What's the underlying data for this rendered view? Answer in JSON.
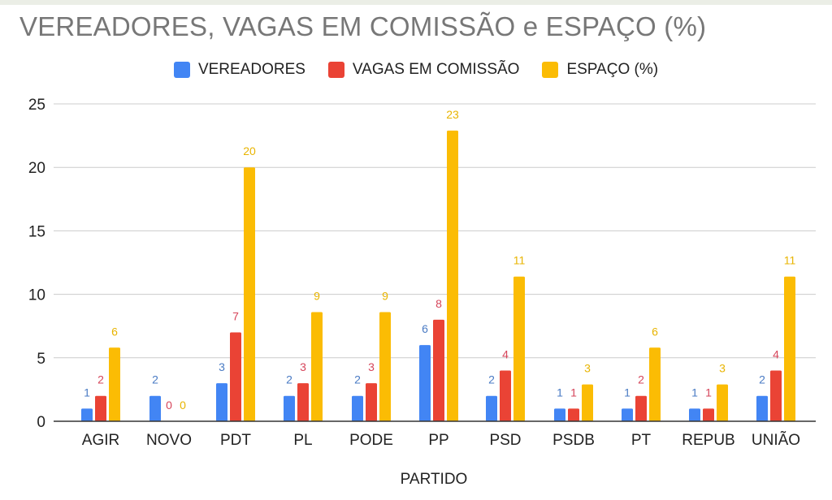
{
  "colors": {
    "background": "#ffffff",
    "title": "#777777",
    "gridline": "#cccccc",
    "axis": "#333333",
    "tick_label": "#222222"
  },
  "chart_data": {
    "type": "bar",
    "title": "VEREADORES, VAGAS EM COMISSÃO e ESPAÇO (%)",
    "xlabel": "PARTIDO",
    "ylabel": "",
    "categories": [
      "AGIR",
      "NOVO",
      "PDT",
      "PL",
      "PODE",
      "PP",
      "PSD",
      "PSDB",
      "PT",
      "REPUB",
      "UNIÃO"
    ],
    "series": [
      {
        "name": "VEREADORES",
        "color": "#4285f4",
        "label_color": "#4a7bc4",
        "values": [
          1,
          2,
          3,
          2,
          2,
          6,
          2,
          1,
          1,
          1,
          2
        ]
      },
      {
        "name": "VAGAS EM COMISSÃO",
        "color": "#ea4335",
        "label_color": "#d6455a",
        "values": [
          2,
          0,
          7,
          3,
          3,
          8,
          4,
          1,
          2,
          1,
          4
        ]
      },
      {
        "name": "ESPAÇO (%)",
        "color": "#fbbc04",
        "label_color": "#e8b400",
        "values": [
          5.8,
          0,
          20,
          8.6,
          8.6,
          22.9,
          11.4,
          2.9,
          5.8,
          2.9,
          11.4
        ]
      }
    ],
    "data_labels": [
      [
        "1",
        "2",
        "3",
        "2",
        "2",
        "6",
        "2",
        "1",
        "1",
        "1",
        "2"
      ],
      [
        "2",
        "0",
        "7",
        "3",
        "3",
        "8",
        "4",
        "1",
        "2",
        "1",
        "4"
      ],
      [
        "6",
        "0",
        "20",
        "9",
        "9",
        "23",
        "11",
        "3",
        "6",
        "3",
        "11"
      ]
    ],
    "yticks": [
      0,
      5,
      10,
      15,
      20,
      25
    ],
    "ylim": [
      0,
      25
    ],
    "grid": true,
    "legend_position": "top"
  }
}
